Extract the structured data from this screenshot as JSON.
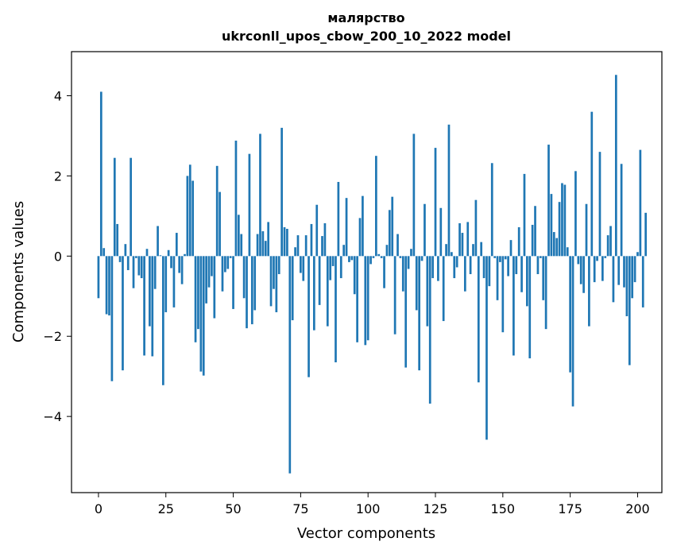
{
  "chart_data": {
    "type": "bar",
    "title": "малярство",
    "subtitle": "ukrconll_upos_cbow_200_10_2022 model",
    "xlabel": "Vector components",
    "ylabel": "Components values",
    "xlim": [
      -10,
      209
    ],
    "ylim": [
      -5.9,
      5.1
    ],
    "x_ticks": [
      0,
      25,
      50,
      75,
      100,
      125,
      150,
      175,
      200
    ],
    "y_ticks": [
      -4,
      -2,
      0,
      2,
      4
    ],
    "y_tick_labels": [
      "−4",
      "−2",
      "0",
      "2",
      "4"
    ],
    "grid": false,
    "legend": "none",
    "bar_color": "#1f77b4",
    "values": [
      -1.05,
      4.1,
      0.2,
      -1.45,
      -1.48,
      -3.12,
      2.45,
      0.8,
      -0.15,
      -2.85,
      0.3,
      -0.35,
      2.45,
      -0.8,
      -0.05,
      -0.48,
      -0.55,
      -2.48,
      0.18,
      -1.75,
      -2.5,
      -0.82,
      0.75,
      0.02,
      -3.22,
      -1.4,
      0.15,
      -0.3,
      -1.28,
      0.58,
      -0.42,
      -0.7,
      0.05,
      2.0,
      2.28,
      1.88,
      -2.15,
      -1.82,
      -2.88,
      -2.98,
      -1.18,
      -0.78,
      -0.5,
      -1.55,
      2.25,
      1.6,
      -0.88,
      -0.4,
      -0.32,
      -0.05,
      -1.32,
      2.88,
      1.03,
      0.55,
      -1.05,
      -1.8,
      2.55,
      -1.7,
      -1.35,
      0.55,
      3.05,
      0.62,
      0.38,
      0.85,
      -1.25,
      -0.82,
      -1.4,
      -0.45,
      3.2,
      0.72,
      0.68,
      -5.42,
      -1.6,
      0.22,
      0.52,
      -0.42,
      -0.62,
      0.52,
      -3.02,
      0.8,
      -1.85,
      1.28,
      -1.22,
      0.5,
      0.82,
      -1.75,
      -0.6,
      -0.25,
      -2.65,
      1.85,
      -0.55,
      0.28,
      1.45,
      -0.15,
      -0.1,
      -0.95,
      -2.15,
      0.95,
      1.5,
      -2.22,
      -2.1,
      -0.2,
      -0.05,
      2.5,
      0.05,
      -0.05,
      -0.8,
      0.28,
      1.15,
      1.48,
      -1.95,
      0.55,
      -0.05,
      -0.88,
      -2.78,
      -0.32,
      0.18,
      3.05,
      -1.35,
      -2.85,
      -0.12,
      1.3,
      -1.75,
      -3.68,
      -0.55,
      2.7,
      -0.62,
      1.2,
      -1.62,
      0.3,
      3.28,
      0.1,
      -0.55,
      -0.28,
      0.82,
      0.58,
      -0.88,
      0.85,
      -0.45,
      0.3,
      1.4,
      -3.15,
      0.35,
      -0.55,
      -4.58,
      -0.75,
      2.32,
      -0.05,
      -1.1,
      -0.15,
      -1.9,
      -0.08,
      -0.5,
      0.4,
      -2.48,
      -0.45,
      0.72,
      -0.9,
      2.05,
      -1.25,
      -2.55,
      0.78,
      1.25,
      -0.45,
      -0.05,
      -1.1,
      -1.82,
      2.78,
      1.55,
      0.6,
      0.45,
      1.35,
      1.82,
      1.78,
      0.22,
      -2.9,
      -3.75,
      2.12,
      -0.2,
      -0.7,
      -0.92,
      1.3,
      -1.75,
      3.6,
      -0.65,
      -0.12,
      2.6,
      -0.62,
      -0.05,
      0.52,
      0.75,
      -1.15,
      4.52,
      -0.72,
      2.3,
      -0.78,
      -1.5,
      -2.72,
      -1.05,
      -0.65,
      0.1,
      2.65,
      -1.28,
      1.08
    ]
  }
}
